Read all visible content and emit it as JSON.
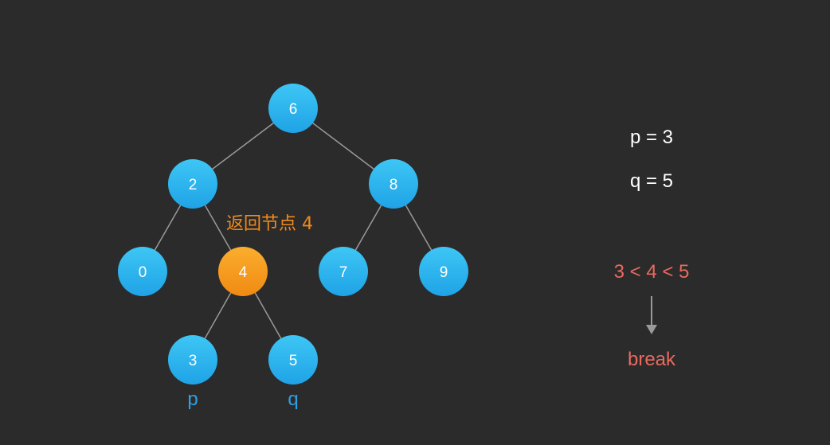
{
  "colors": {
    "background": "#2b2b2b",
    "node_blue": "#2fb5ee",
    "node_highlight": "#f59a1c",
    "edge": "#9a9a9a",
    "pointer_label": "#2f9fe6",
    "return_note": "#f28a1b",
    "condition": "#e86a5f",
    "params": "#ffffff"
  },
  "tree": {
    "nodes": [
      {
        "id": "6",
        "label": "6",
        "highlight": false
      },
      {
        "id": "2",
        "label": "2",
        "highlight": false
      },
      {
        "id": "8",
        "label": "8",
        "highlight": false
      },
      {
        "id": "0",
        "label": "0",
        "highlight": false
      },
      {
        "id": "4",
        "label": "4",
        "highlight": true
      },
      {
        "id": "7",
        "label": "7",
        "highlight": false
      },
      {
        "id": "9",
        "label": "9",
        "highlight": false
      },
      {
        "id": "3",
        "label": "3",
        "highlight": false
      },
      {
        "id": "5",
        "label": "5",
        "highlight": false
      }
    ],
    "edges": [
      [
        "6",
        "2"
      ],
      [
        "6",
        "8"
      ],
      [
        "2",
        "0"
      ],
      [
        "2",
        "4"
      ],
      [
        "8",
        "7"
      ],
      [
        "8",
        "9"
      ],
      [
        "4",
        "3"
      ],
      [
        "4",
        "5"
      ]
    ],
    "pointers": [
      {
        "node": "3",
        "label": "p"
      },
      {
        "node": "5",
        "label": "q"
      }
    ]
  },
  "return_note": "返回节点 4",
  "params": {
    "p": "p = 3",
    "q": "q = 5"
  },
  "condition": "3 < 4 < 5",
  "result": "break"
}
